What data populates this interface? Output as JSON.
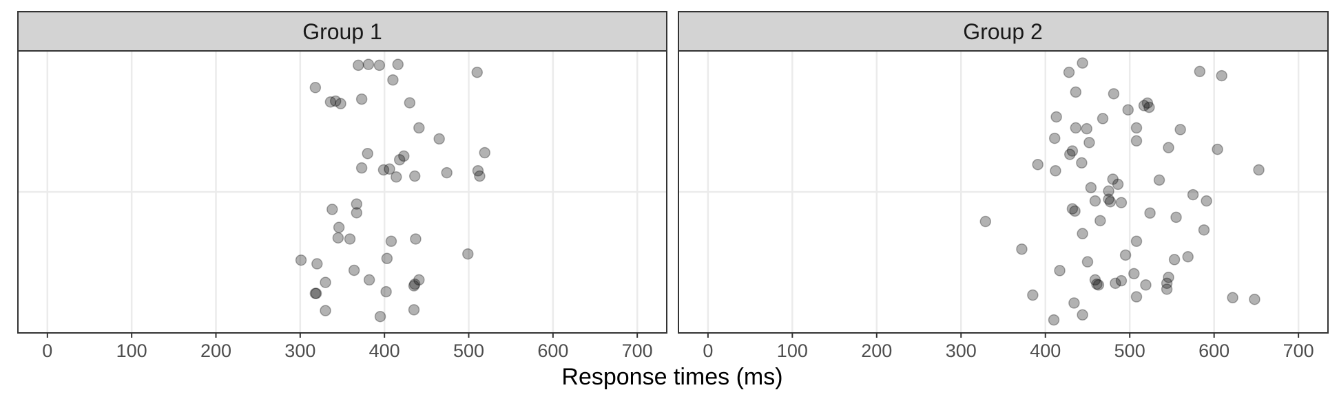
{
  "chart_data": {
    "type": "scatter",
    "xlabel": "Response times (ms)",
    "ylabel": "",
    "xlim": [
      -35,
      735
    ],
    "x_ticks": [
      0,
      100,
      200,
      300,
      400,
      500,
      600,
      700
    ],
    "x_tick_labels": [
      "0",
      "100",
      "200",
      "300",
      "400",
      "500",
      "600",
      "700"
    ],
    "y_range": [
      0,
      1
    ],
    "grid": true,
    "panels": [
      {
        "name": "Group 1",
        "points": [
          {
            "x": 369,
            "y": 0.949
          },
          {
            "x": 381,
            "y": 0.952
          },
          {
            "x": 394,
            "y": 0.949
          },
          {
            "x": 416,
            "y": 0.952
          },
          {
            "x": 510,
            "y": 0.924
          },
          {
            "x": 410,
            "y": 0.897
          },
          {
            "x": 318,
            "y": 0.87
          },
          {
            "x": 336,
            "y": 0.819
          },
          {
            "x": 342,
            "y": 0.822
          },
          {
            "x": 348,
            "y": 0.813
          },
          {
            "x": 373,
            "y": 0.829
          },
          {
            "x": 430,
            "y": 0.816
          },
          {
            "x": 441,
            "y": 0.727
          },
          {
            "x": 465,
            "y": 0.688
          },
          {
            "x": 519,
            "y": 0.639
          },
          {
            "x": 380,
            "y": 0.636
          },
          {
            "x": 423,
            "y": 0.627
          },
          {
            "x": 418,
            "y": 0.614
          },
          {
            "x": 373,
            "y": 0.585
          },
          {
            "x": 399,
            "y": 0.578
          },
          {
            "x": 406,
            "y": 0.581
          },
          {
            "x": 414,
            "y": 0.553
          },
          {
            "x": 436,
            "y": 0.556
          },
          {
            "x": 474,
            "y": 0.568
          },
          {
            "x": 511,
            "y": 0.575
          },
          {
            "x": 513,
            "y": 0.556
          },
          {
            "x": 367,
            "y": 0.457
          },
          {
            "x": 338,
            "y": 0.438
          },
          {
            "x": 367,
            "y": 0.426
          },
          {
            "x": 346,
            "y": 0.374
          },
          {
            "x": 345,
            "y": 0.337
          },
          {
            "x": 359,
            "y": 0.333
          },
          {
            "x": 408,
            "y": 0.325
          },
          {
            "x": 437,
            "y": 0.333
          },
          {
            "x": 499,
            "y": 0.28
          },
          {
            "x": 301,
            "y": 0.258
          },
          {
            "x": 320,
            "y": 0.245
          },
          {
            "x": 403,
            "y": 0.264
          },
          {
            "x": 364,
            "y": 0.222
          },
          {
            "x": 382,
            "y": 0.188
          },
          {
            "x": 330,
            "y": 0.179
          },
          {
            "x": 436,
            "y": 0.173
          },
          {
            "x": 435,
            "y": 0.167
          },
          {
            "x": 441,
            "y": 0.188
          },
          {
            "x": 318,
            "y": 0.14
          },
          {
            "x": 319,
            "y": 0.14
          },
          {
            "x": 402,
            "y": 0.146
          },
          {
            "x": 330,
            "y": 0.079
          },
          {
            "x": 435,
            "y": 0.082
          },
          {
            "x": 395,
            "y": 0.058
          }
        ]
      },
      {
        "name": "Group 2",
        "points": [
          {
            "x": 444,
            "y": 0.957
          },
          {
            "x": 428,
            "y": 0.924
          },
          {
            "x": 583,
            "y": 0.927
          },
          {
            "x": 609,
            "y": 0.912
          },
          {
            "x": 436,
            "y": 0.854
          },
          {
            "x": 481,
            "y": 0.848
          },
          {
            "x": 521,
            "y": 0.815
          },
          {
            "x": 517,
            "y": 0.806
          },
          {
            "x": 523,
            "y": 0.8
          },
          {
            "x": 498,
            "y": 0.791
          },
          {
            "x": 413,
            "y": 0.766
          },
          {
            "x": 468,
            "y": 0.76
          },
          {
            "x": 436,
            "y": 0.727
          },
          {
            "x": 449,
            "y": 0.724
          },
          {
            "x": 508,
            "y": 0.727
          },
          {
            "x": 560,
            "y": 0.721
          },
          {
            "x": 411,
            "y": 0.69
          },
          {
            "x": 452,
            "y": 0.675
          },
          {
            "x": 508,
            "y": 0.681
          },
          {
            "x": 432,
            "y": 0.645
          },
          {
            "x": 429,
            "y": 0.633
          },
          {
            "x": 546,
            "y": 0.657
          },
          {
            "x": 604,
            "y": 0.651
          },
          {
            "x": 391,
            "y": 0.597
          },
          {
            "x": 412,
            "y": 0.575
          },
          {
            "x": 443,
            "y": 0.603
          },
          {
            "x": 653,
            "y": 0.578
          },
          {
            "x": 480,
            "y": 0.545
          },
          {
            "x": 486,
            "y": 0.527
          },
          {
            "x": 535,
            "y": 0.542
          },
          {
            "x": 454,
            "y": 0.515
          },
          {
            "x": 475,
            "y": 0.503
          },
          {
            "x": 575,
            "y": 0.49
          },
          {
            "x": 459,
            "y": 0.468
          },
          {
            "x": 475,
            "y": 0.474
          },
          {
            "x": 477,
            "y": 0.465
          },
          {
            "x": 490,
            "y": 0.462
          },
          {
            "x": 591,
            "y": 0.468
          },
          {
            "x": 432,
            "y": 0.44
          },
          {
            "x": 435,
            "y": 0.432
          },
          {
            "x": 524,
            "y": 0.425
          },
          {
            "x": 329,
            "y": 0.395
          },
          {
            "x": 465,
            "y": 0.398
          },
          {
            "x": 555,
            "y": 0.41
          },
          {
            "x": 444,
            "y": 0.352
          },
          {
            "x": 588,
            "y": 0.365
          },
          {
            "x": 508,
            "y": 0.325
          },
          {
            "x": 372,
            "y": 0.297
          },
          {
            "x": 495,
            "y": 0.276
          },
          {
            "x": 569,
            "y": 0.27
          },
          {
            "x": 553,
            "y": 0.26
          },
          {
            "x": 450,
            "y": 0.252
          },
          {
            "x": 417,
            "y": 0.221
          },
          {
            "x": 505,
            "y": 0.21
          },
          {
            "x": 546,
            "y": 0.197
          },
          {
            "x": 459,
            "y": 0.188
          },
          {
            "x": 490,
            "y": 0.185
          },
          {
            "x": 461,
            "y": 0.173
          },
          {
            "x": 463,
            "y": 0.17
          },
          {
            "x": 483,
            "y": 0.176
          },
          {
            "x": 519,
            "y": 0.17
          },
          {
            "x": 544,
            "y": 0.176
          },
          {
            "x": 544,
            "y": 0.155
          },
          {
            "x": 385,
            "y": 0.134
          },
          {
            "x": 508,
            "y": 0.128
          },
          {
            "x": 622,
            "y": 0.125
          },
          {
            "x": 648,
            "y": 0.119
          },
          {
            "x": 434,
            "y": 0.106
          },
          {
            "x": 444,
            "y": 0.064
          },
          {
            "x": 410,
            "y": 0.046
          }
        ]
      }
    ]
  }
}
